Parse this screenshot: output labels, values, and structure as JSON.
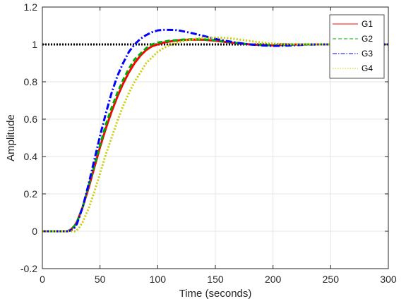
{
  "chart_data": {
    "type": "line",
    "title": "",
    "xlabel": "Time (seconds)",
    "ylabel": "Amplitude",
    "xlim": [
      0,
      300
    ],
    "ylim": [
      -0.2,
      1.2
    ],
    "xticks": [
      0,
      50,
      100,
      150,
      200,
      250,
      300
    ],
    "yticks": [
      -0.2,
      0,
      0.2,
      0.4,
      0.6,
      0.8,
      1,
      1.2
    ],
    "xtick_labels": [
      "0",
      "50",
      "100",
      "150",
      "200",
      "250",
      "300"
    ],
    "ytick_labels": [
      "-0.2",
      "0",
      "0.2",
      "0.4",
      "0.6",
      "0.8",
      "1",
      "1.2"
    ],
    "grid": true,
    "legend_position": "top-right",
    "reference": {
      "y": 1,
      "color": "#000000",
      "style": "dotted"
    },
    "series": [
      {
        "name": "G1",
        "color": "#ff0000",
        "style": "solid",
        "x": [
          0,
          22,
          25,
          28,
          30,
          35,
          40,
          45,
          50,
          55,
          60,
          65,
          70,
          75,
          80,
          85,
          90,
          95,
          100,
          105,
          110,
          115,
          120,
          130,
          140,
          150,
          160,
          170,
          180,
          190,
          200,
          210,
          220,
          230,
          240,
          250,
          260,
          270,
          280,
          290,
          300
        ],
        "values": [
          0,
          0,
          0.01,
          0.03,
          0.05,
          0.13,
          0.23,
          0.34,
          0.45,
          0.55,
          0.64,
          0.72,
          0.79,
          0.85,
          0.9,
          0.94,
          0.97,
          0.99,
          1.0,
          1.01,
          1.015,
          1.02,
          1.023,
          1.026,
          1.025,
          1.02,
          1.012,
          1.005,
          1.0,
          0.997,
          0.995,
          0.997,
          0.999,
          1.0,
          1.0,
          1.0,
          1.0,
          1.0,
          1.0,
          1.0,
          1.0
        ]
      },
      {
        "name": "G2",
        "color": "#00aa00",
        "style": "dashed",
        "x": [
          0,
          22,
          25,
          28,
          30,
          35,
          40,
          45,
          50,
          55,
          60,
          65,
          70,
          75,
          80,
          85,
          90,
          95,
          100,
          105,
          110,
          115,
          120,
          130,
          140,
          150,
          160,
          170,
          180,
          190,
          200,
          210,
          220,
          230,
          240,
          250,
          260,
          270,
          280,
          290,
          300
        ],
        "values": [
          0,
          0,
          0.01,
          0.03,
          0.05,
          0.13,
          0.24,
          0.35,
          0.46,
          0.57,
          0.66,
          0.74,
          0.81,
          0.87,
          0.92,
          0.95,
          0.98,
          1.0,
          1.01,
          1.015,
          1.02,
          1.022,
          1.025,
          1.028,
          1.027,
          1.022,
          1.014,
          1.006,
          1.0,
          0.997,
          0.995,
          0.997,
          0.999,
          1.0,
          1.0,
          1.0,
          1.0,
          1.0,
          1.0,
          1.0,
          1.0
        ]
      },
      {
        "name": "G3",
        "color": "#0000ff",
        "style": "dashdot",
        "x": [
          0,
          22,
          25,
          28,
          30,
          35,
          40,
          45,
          50,
          55,
          60,
          65,
          70,
          75,
          80,
          85,
          90,
          95,
          100,
          105,
          110,
          115,
          120,
          130,
          140,
          150,
          160,
          170,
          180,
          190,
          200,
          210,
          220,
          230,
          240,
          250,
          260,
          270,
          280,
          290,
          300
        ],
        "values": [
          0,
          0,
          0.005,
          0.02,
          0.04,
          0.13,
          0.25,
          0.38,
          0.51,
          0.63,
          0.74,
          0.83,
          0.9,
          0.96,
          1.0,
          1.03,
          1.05,
          1.065,
          1.075,
          1.078,
          1.078,
          1.077,
          1.073,
          1.06,
          1.045,
          1.03,
          1.018,
          1.008,
          1.0,
          0.995,
          0.992,
          0.993,
          0.996,
          0.999,
          1.0,
          1.0,
          1.0,
          1.0,
          1.0,
          1.0,
          1.0
        ]
      },
      {
        "name": "G4",
        "color": "#cccc00",
        "style": "dotted",
        "x": [
          0,
          29,
          30,
          32,
          35,
          40,
          45,
          50,
          55,
          60,
          65,
          70,
          75,
          80,
          85,
          90,
          95,
          100,
          105,
          110,
          115,
          120,
          130,
          140,
          150,
          160,
          170,
          180,
          190,
          200,
          210,
          220,
          230,
          240,
          250,
          260,
          270,
          280,
          290,
          300
        ],
        "values": [
          0,
          0,
          0.005,
          0.02,
          0.05,
          0.12,
          0.21,
          0.31,
          0.41,
          0.5,
          0.59,
          0.67,
          0.74,
          0.8,
          0.85,
          0.9,
          0.93,
          0.96,
          0.98,
          0.995,
          1.005,
          1.015,
          1.028,
          1.035,
          1.037,
          1.034,
          1.027,
          1.018,
          1.01,
          1.004,
          1.001,
          1.0,
          1.0,
          1.0,
          1.0,
          1.0,
          1.0,
          1.0,
          1.0,
          1.0
        ]
      }
    ]
  }
}
